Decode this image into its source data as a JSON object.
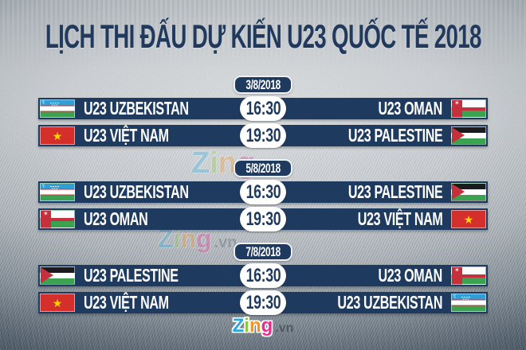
{
  "title": "LỊCH THI ĐẤU DỰ KIẾN U23 QUỐC TẾ 2018",
  "colors": {
    "bar_navy": "#1e3b5f",
    "bar_text": "#ffffff",
    "title_text": "#21395c",
    "pill_bg": "#ffffff",
    "pill_text": "#1e3b5f",
    "badge_border": "#eef1f3",
    "zing_z": "#29a9e0",
    "zing_i": "#8dc63f",
    "zing_n": "#f7941d",
    "zing_g": "#ec2a92"
  },
  "sections": [
    {
      "date": "3/8/2018",
      "matches": [
        {
          "home": "U23 UZBEKISTAN",
          "home_flag": "uzbekistan",
          "time": "16:30",
          "away": "U23 OMAN",
          "away_flag": "oman"
        },
        {
          "home": "U23 VIỆT NAM",
          "home_flag": "vietnam",
          "time": "19:30",
          "away": "U23 PALESTINE",
          "away_flag": "palestine"
        }
      ]
    },
    {
      "date": "5/8/2018",
      "matches": [
        {
          "home": "U23 UZBEKISTAN",
          "home_flag": "uzbekistan",
          "time": "16:30",
          "away": "U23 PALESTINE",
          "away_flag": "palestine"
        },
        {
          "home": "U23 OMAN",
          "home_flag": "oman",
          "time": "19:30",
          "away": "U23 VIỆT NAM",
          "away_flag": "vietnam"
        }
      ]
    },
    {
      "date": "7/8/2018",
      "matches": [
        {
          "home": "U23 PALESTINE",
          "home_flag": "palestine",
          "time": "16:30",
          "away": "U23 OMAN",
          "away_flag": "oman"
        },
        {
          "home": "U23 VIỆT NAM",
          "home_flag": "vietnam",
          "time": "19:30",
          "away": "U23 UZBEKISTAN",
          "away_flag": "uzbekistan"
        }
      ]
    }
  ],
  "branding": {
    "letters": [
      {
        "ch": "Z",
        "color": "#29a9e0"
      },
      {
        "ch": "i",
        "color": "#8dc63f"
      },
      {
        "ch": "n",
        "color": "#f7941d"
      },
      {
        "ch": "g",
        "color": "#ec2a92"
      }
    ],
    "suffix": ".vn"
  }
}
